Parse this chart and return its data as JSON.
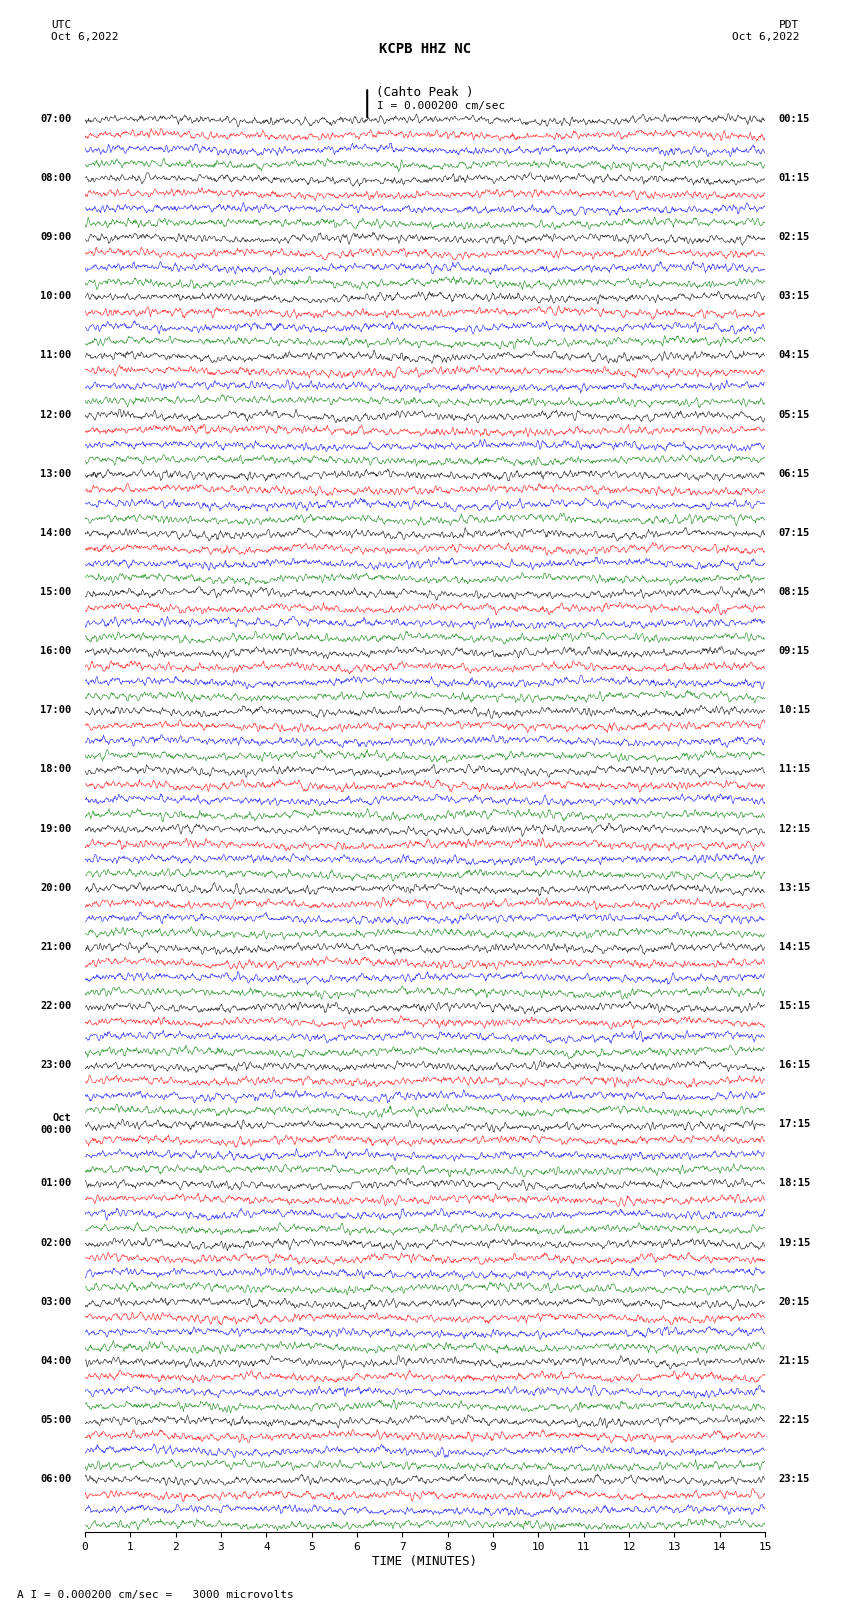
{
  "title_line1": "KCPB HHZ NC",
  "title_line2": "(Cahto Peak )",
  "scale_label": "I = 0.000200 cm/sec",
  "bottom_label": "A I = 0.000200 cm/sec =   3000 microvolts",
  "xlabel": "TIME (MINUTES)",
  "left_header": "UTC\nOct 6,2022",
  "right_header": "PDT\nOct 6,2022",
  "left_times": [
    "07:00",
    "08:00",
    "09:00",
    "10:00",
    "11:00",
    "12:00",
    "13:00",
    "14:00",
    "15:00",
    "16:00",
    "17:00",
    "18:00",
    "19:00",
    "20:00",
    "21:00",
    "22:00",
    "23:00",
    "Oct\n00:00",
    "01:00",
    "02:00",
    "03:00",
    "04:00",
    "05:00",
    "06:00"
  ],
  "right_times": [
    "00:15",
    "01:15",
    "02:15",
    "03:15",
    "04:15",
    "05:15",
    "06:15",
    "07:15",
    "08:15",
    "09:15",
    "10:15",
    "11:15",
    "12:15",
    "13:15",
    "14:15",
    "15:15",
    "16:15",
    "17:15",
    "18:15",
    "19:15",
    "20:15",
    "21:15",
    "22:15",
    "23:15"
  ],
  "colors": [
    "black",
    "red",
    "blue",
    "green"
  ],
  "n_rows": 24,
  "traces_per_row": 4,
  "x_min": 0,
  "x_max": 15,
  "x_ticks": [
    0,
    1,
    2,
    3,
    4,
    5,
    6,
    7,
    8,
    9,
    10,
    11,
    12,
    13,
    14,
    15
  ],
  "background_color": "white",
  "amplitude": 0.35,
  "noise_seed": 42
}
